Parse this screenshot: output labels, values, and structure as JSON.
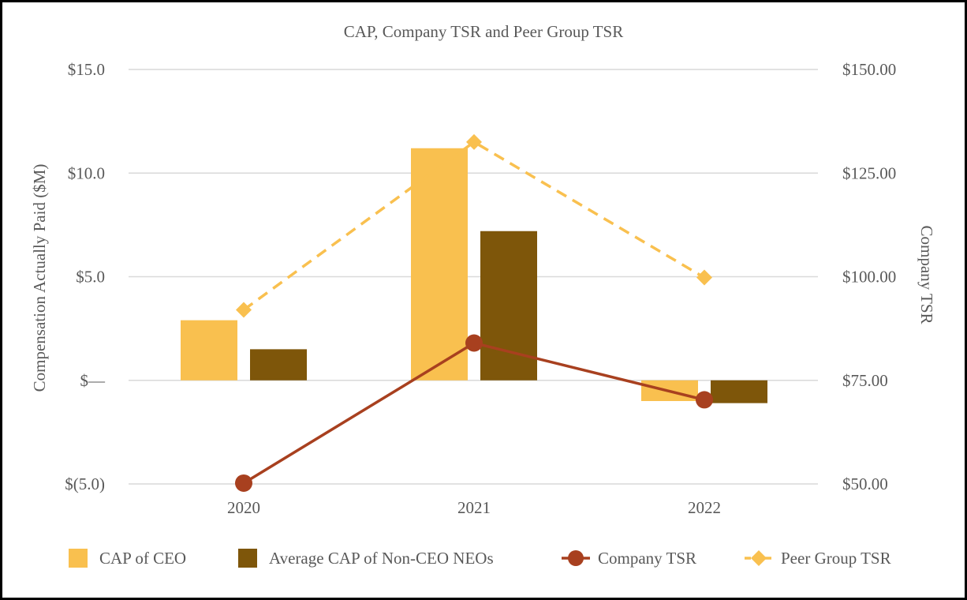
{
  "chart_data": {
    "type": "bar",
    "title": "CAP, Company TSR and Peer Group TSR",
    "categories": [
      "2020",
      "2021",
      "2022"
    ],
    "ylabel_left": "Compensation Actually Paid ($M)",
    "ylabel_right": "Company TSR",
    "ylim_left": [
      -5,
      15
    ],
    "ylim_right": [
      50,
      150
    ],
    "yticks_left": [
      {
        "value": 15,
        "label": "$15.0"
      },
      {
        "value": 10,
        "label": "$10.0"
      },
      {
        "value": 5,
        "label": "$5.0"
      },
      {
        "value": 0,
        "label": "$—"
      },
      {
        "value": -5,
        "label": "$(5.0)"
      }
    ],
    "yticks_right": [
      {
        "value": 150,
        "label": "$150.00"
      },
      {
        "value": 125,
        "label": "$125.00"
      },
      {
        "value": 100,
        "label": "$100.00"
      },
      {
        "value": 75,
        "label": "$75.00"
      },
      {
        "value": 50,
        "label": "$50.00"
      }
    ],
    "grid": true,
    "legend_position": "bottom",
    "series": [
      {
        "name": "CAP of CEO",
        "kind": "bar",
        "axis": "left",
        "color": "#F9C04F",
        "values": [
          2.9,
          11.2,
          -1.0
        ]
      },
      {
        "name": "Average CAP of Non-CEO NEOs",
        "kind": "bar",
        "axis": "left",
        "color": "#7E560A",
        "values": [
          1.5,
          7.2,
          -1.1
        ]
      },
      {
        "name": "Company TSR",
        "kind": "line",
        "marker": "circle",
        "axis": "right",
        "color": "#A8401F",
        "values": [
          50.2,
          84.0,
          70.3
        ]
      },
      {
        "name": "Peer Group TSR",
        "kind": "line",
        "marker": "diamond",
        "dashed": true,
        "axis": "right",
        "color": "#F9C04F",
        "values": [
          92.0,
          132.5,
          99.8
        ]
      }
    ]
  }
}
